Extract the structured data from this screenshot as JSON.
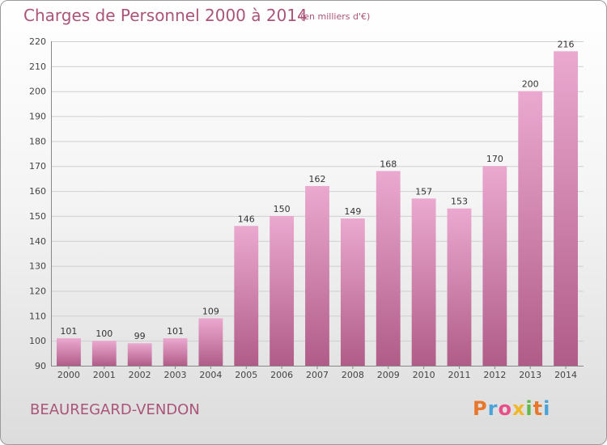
{
  "header": {
    "title": "Charges de Personnel 2000 à 2014",
    "subtitle": "(en milliers d'€)"
  },
  "footer": {
    "commune": "BEAUREGARD-VENDON",
    "brand_letters": [
      "P",
      "r",
      "o",
      "x",
      "i",
      "t",
      "i"
    ],
    "brand_colors": [
      "#e8772a",
      "#4aa3d8",
      "#e84f8a",
      "#f0b829",
      "#5fb84a",
      "#e8772a",
      "#4aa3d8"
    ]
  },
  "colors": {
    "bar_light": "#eba9d0",
    "bar_dark": "#b05c88",
    "text_accent": "#ab5479"
  },
  "chart_data": {
    "type": "bar",
    "title": "Charges de Personnel 2000 à 2014",
    "subtitle": "(en milliers d'€)",
    "categories": [
      "2000",
      "2001",
      "2002",
      "2003",
      "2004",
      "2005",
      "2006",
      "2007",
      "2008",
      "2009",
      "2010",
      "2011",
      "2012",
      "2013",
      "2014"
    ],
    "values": [
      101,
      100,
      99,
      101,
      109,
      146,
      150,
      162,
      149,
      168,
      157,
      153,
      170,
      200,
      216
    ],
    "ylim": [
      90,
      220
    ],
    "yticks": [
      90,
      100,
      110,
      120,
      130,
      140,
      150,
      160,
      170,
      180,
      190,
      200,
      210,
      220
    ],
    "grid": true,
    "xlabel": "",
    "ylabel": ""
  }
}
